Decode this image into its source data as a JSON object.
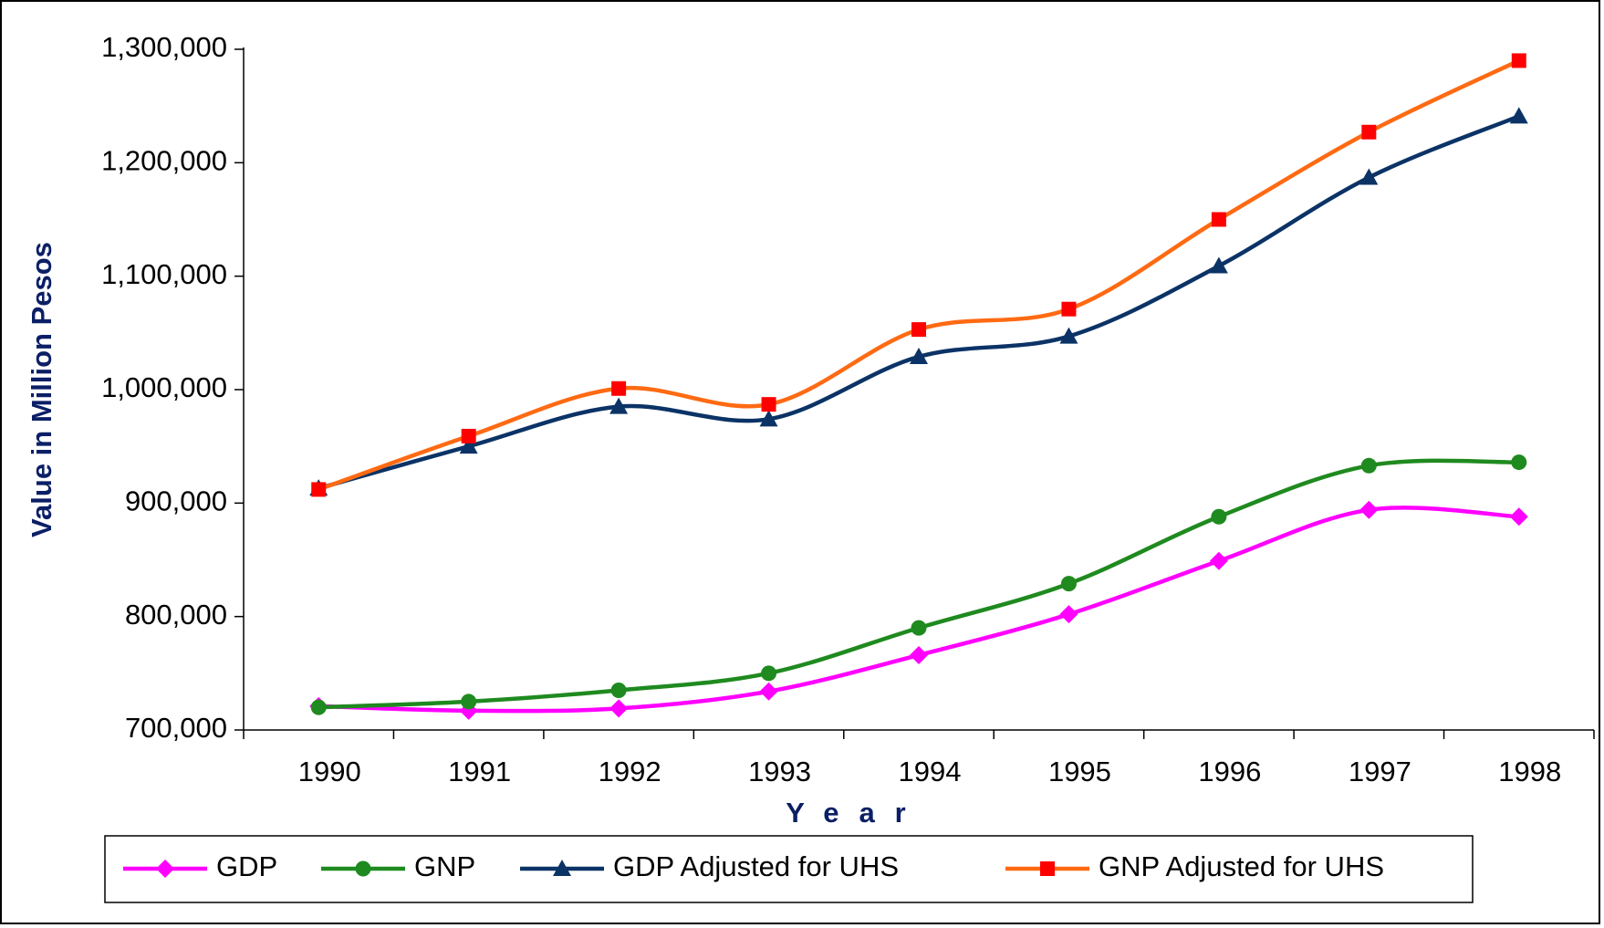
{
  "chart_data": {
    "type": "line",
    "x_label": "Year",
    "y_label": "Value in Million Pesos",
    "categories": [
      "1990",
      "1991",
      "1992",
      "1993",
      "1994",
      "1995",
      "1996",
      "1997",
      "1998"
    ],
    "series": [
      {
        "name": "GDP",
        "color": "#ff00ff",
        "marker": "diamond",
        "marker_color": "#ff00ff",
        "values": [
          721000,
          717000,
          719000,
          734000,
          766000,
          802000,
          849000,
          894000,
          888000
        ]
      },
      {
        "name": "GNP",
        "color": "#1f8a1f",
        "marker": "circle",
        "marker_color": "#1f8a1f",
        "values": [
          720000,
          725000,
          735000,
          750000,
          790000,
          829000,
          888000,
          933000,
          936000
        ]
      },
      {
        "name": "GDP Adjusted for UHS",
        "color": "#0b3366",
        "marker": "triangle",
        "marker_color": "#0b3366",
        "values": [
          913000,
          950000,
          985000,
          974000,
          1029000,
          1047000,
          1109000,
          1187000,
          1241000
        ]
      },
      {
        "name": "GNP Adjusted for UHS",
        "color": "#ff6a13",
        "marker": "square",
        "marker_color": "#ff0000",
        "values": [
          912000,
          959000,
          1001000,
          987000,
          1053000,
          1071000,
          1150000,
          1227000,
          1290000
        ]
      }
    ],
    "ylim": [
      700000,
      1300000
    ],
    "yticks": [
      {
        "value": 700000,
        "label": "700,000"
      },
      {
        "value": 800000,
        "label": "800,000"
      },
      {
        "value": 900000,
        "label": "900,000"
      },
      {
        "value": 1000000,
        "label": "1,000,000"
      },
      {
        "value": 1100000,
        "label": "1,100,000"
      },
      {
        "value": 1200000,
        "label": "1,200,000"
      },
      {
        "value": 1300000,
        "label": "1,300,000"
      }
    ],
    "grid": false,
    "legend": "bottom"
  }
}
